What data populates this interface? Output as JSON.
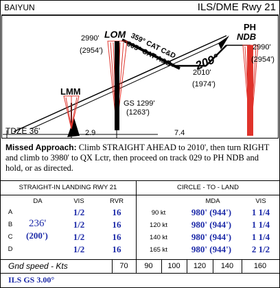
{
  "header": {
    "airport": "BAIYUN",
    "procedure": "ILS/DME Rwy 21"
  },
  "profile": {
    "lom": {
      "label": "LOM",
      "alt": "2990'",
      "alt_sub": "(2954')"
    },
    "lmm": {
      "label": "LMM"
    },
    "ndb": {
      "label_top": "PH",
      "label_bottom": "NDB",
      "alt": "2990'",
      "alt_sub": "(2954')"
    },
    "track_label_1": "359° CAT C&D",
    "track_label_2": "005° CAT A&B",
    "course": "209°",
    "step_alt": "2010'",
    "step_alt_sub": "(1974')",
    "gs_label": "GS 1299'",
    "gs_label_sub": "(1263')",
    "tdze": "TDZE 36'",
    "dist_1": "2.9",
    "dist_2": "7.4"
  },
  "missed_approach": {
    "heading": "Missed Approach:",
    "text": "Climb STRAIGHT AHEAD to 2010', then turn RIGHT and climb to 3980' to QX Lctr, then proceed on track 029 to PH NDB and hold, or as directed."
  },
  "minima": {
    "straight_title": "STRAIGHT-IN LANDING RWY 21",
    "circle_title": "CIRCLE - TO - LAND",
    "cols": {
      "da": "DA",
      "vis": "VIS",
      "rvr": "RVR",
      "mda": "MDA",
      "vis2": "VIS"
    },
    "da_value": "236'",
    "da_value_sub": "(200')",
    "rows": [
      {
        "cat": "A",
        "vis": "1/2",
        "rvr": "16",
        "speed": "90 kt",
        "mda": "980' (944')",
        "cvis": "1 1/4"
      },
      {
        "cat": "B",
        "vis": "1/2",
        "rvr": "16",
        "speed": "120 kt",
        "mda": "980' (944')",
        "cvis": "1 1/4"
      },
      {
        "cat": "C",
        "vis": "1/2",
        "rvr": "16",
        "speed": "140 kt",
        "mda": "980' (944')",
        "cvis": "1 1/4"
      },
      {
        "cat": "D",
        "vis": "1/2",
        "rvr": "16",
        "speed": "165 kt",
        "mda": "980' (944')",
        "cvis": "2 1/2"
      }
    ]
  },
  "groundspeed": {
    "label": "Gnd speed - Kts",
    "values": [
      "70",
      "90",
      "100",
      "120",
      "140",
      "160"
    ],
    "gs_label": "ILS GS 3.00°"
  }
}
